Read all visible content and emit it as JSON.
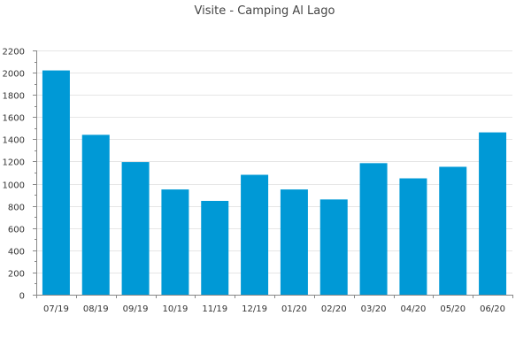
{
  "chart_data": {
    "type": "bar",
    "title": "Visite - Camping Al Lago",
    "categories": [
      "07/19",
      "08/19",
      "09/19",
      "10/19",
      "11/19",
      "12/19",
      "01/20",
      "02/20",
      "03/20",
      "04/20",
      "05/20",
      "06/20"
    ],
    "values": [
      2020,
      1440,
      1195,
      948,
      845,
      1080,
      948,
      858,
      1185,
      1048,
      1152,
      1462
    ],
    "ylim": [
      0,
      2200
    ],
    "yticks": [
      0,
      200,
      400,
      600,
      800,
      1000,
      1200,
      1400,
      1600,
      1800,
      2000,
      2200
    ],
    "grid": true,
    "legend": "none",
    "bar_color": "#0099d6"
  }
}
